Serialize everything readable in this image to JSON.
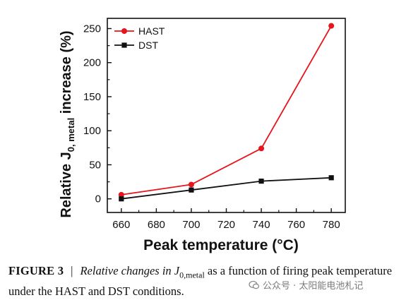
{
  "chart_data": {
    "type": "line",
    "title": "",
    "xlabel": "Peak temperature (°C)",
    "ylabel_parts": {
      "pre": "Relative J",
      "sub": "0, metal",
      "post": " increase (%)"
    },
    "x": [
      660,
      680,
      700,
      720,
      740,
      760,
      780
    ],
    "xlim": [
      652,
      788
    ],
    "ylim": [
      -20,
      265
    ],
    "xticks": [
      660,
      680,
      700,
      720,
      740,
      760,
      780
    ],
    "yticks": [
      0,
      50,
      100,
      150,
      200,
      250
    ],
    "legend_position": "top-left",
    "series": [
      {
        "name": "HAST",
        "color": "#e8141b",
        "marker": "circle",
        "points": [
          [
            660,
            6
          ],
          [
            700,
            21
          ],
          [
            740,
            74
          ],
          [
            780,
            254
          ]
        ]
      },
      {
        "name": "DST",
        "color": "#111111",
        "marker": "square",
        "points": [
          [
            660,
            0
          ],
          [
            700,
            13
          ],
          [
            740,
            26
          ],
          [
            780,
            31
          ]
        ]
      }
    ]
  },
  "caption": {
    "label": "FIGURE 3",
    "separator": "|",
    "text_pre": "Relative changes in J",
    "text_sub": "0,metal",
    "text_post": " as a function of firing peak temperature under the HAST and DST conditions."
  },
  "watermark": {
    "text": "公众号 · 太阳能电池札记"
  }
}
